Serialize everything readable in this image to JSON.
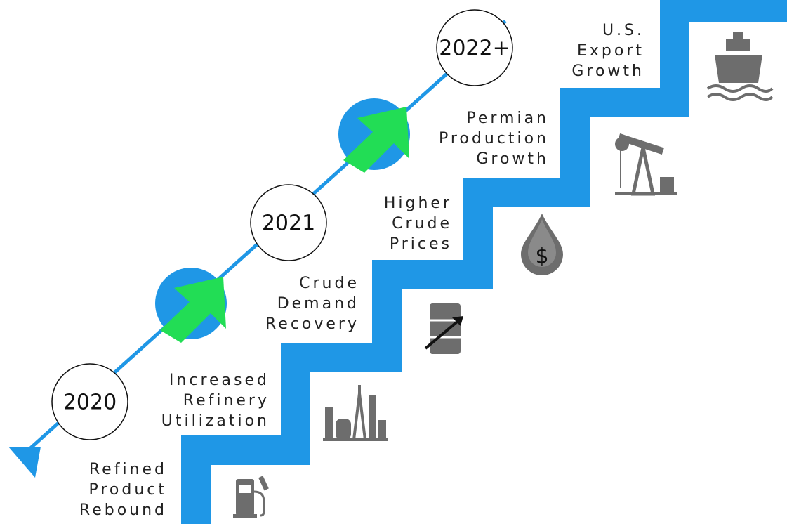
{
  "milestones": [
    "2020",
    "2021",
    "2022+"
  ],
  "steps": [
    {
      "lines": [
        "Refined",
        "Product",
        "Rebound"
      ]
    },
    {
      "lines": [
        "Increased",
        "Refinery",
        "Utilization"
      ]
    },
    {
      "lines": [
        "Crude",
        "Demand",
        "Recovery"
      ]
    },
    {
      "lines": [
        "Higher",
        "Crude",
        "Prices"
      ]
    },
    {
      "lines": [
        "Permian",
        "Production",
        "Growth"
      ]
    },
    {
      "lines": [
        "U.S.",
        "Export",
        "Growth"
      ]
    }
  ]
}
